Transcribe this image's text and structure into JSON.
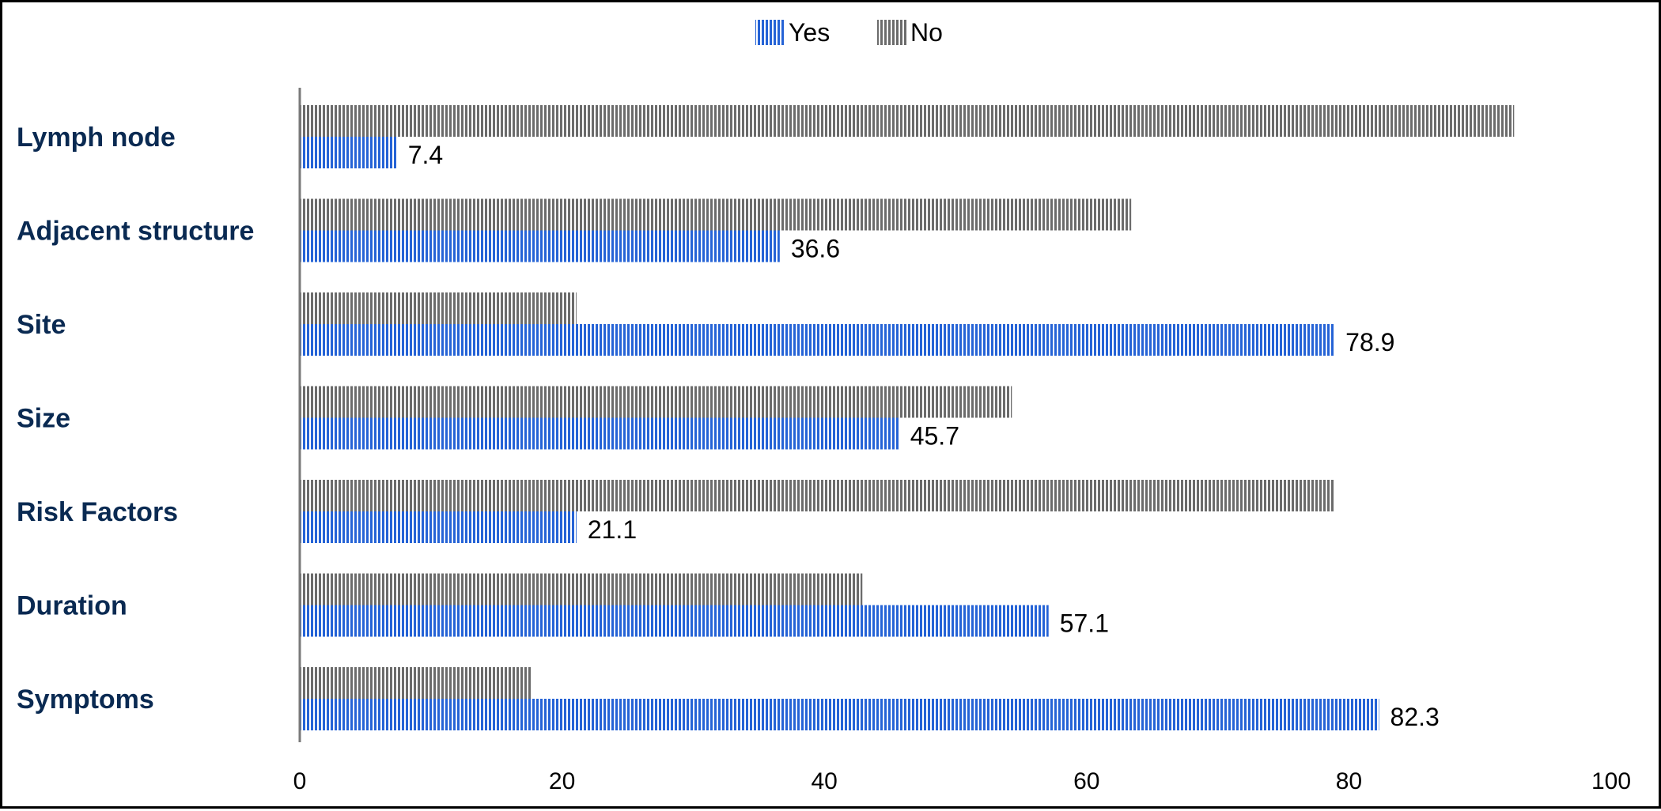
{
  "chart_data": {
    "type": "bar",
    "orientation": "horizontal",
    "categories": [
      "Lymph node",
      "Adjacent structure",
      "Site",
      "Size",
      "Risk Factors",
      "Duration",
      "Symptoms"
    ],
    "series": [
      {
        "name": "Yes",
        "values": [
          7.4,
          36.6,
          78.9,
          45.7,
          21.1,
          57.1,
          82.3
        ],
        "color": "#2563d6",
        "data_labels": [
          "7.4",
          "36.6",
          "78.9",
          "45.7",
          "21.1",
          "57.1",
          "82.3"
        ]
      },
      {
        "name": "No",
        "values": [
          92.6,
          63.4,
          21.1,
          54.3,
          78.9,
          42.9,
          17.7
        ],
        "color": "#6b6b6b"
      }
    ],
    "xlim": [
      0,
      100
    ],
    "xticks": [
      "0",
      "20",
      "40",
      "60",
      "80",
      "100"
    ],
    "legend_position": "top-center",
    "grid": false,
    "title": "",
    "xlabel": "",
    "ylabel": ""
  }
}
